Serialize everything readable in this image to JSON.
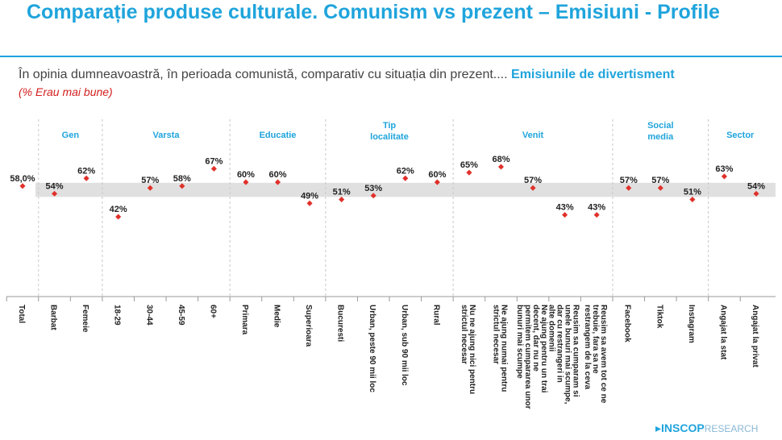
{
  "header": {
    "title": "Comparație produse culturale. Comunism vs prezent – Emisiuni - Profile",
    "question_prefix": "În opinia dumneavoastră, în perioada comunistă, comparativ cu situația din prezent....",
    "question_highlight": "Emisiunile de divertisment",
    "note": "(% Erau mai bune)"
  },
  "brand": {
    "name_bold": "INSCOP",
    "name_light": "RESEARCH"
  },
  "colors": {
    "accent": "#1fa4dc",
    "marker": "#e0312a",
    "band": "#e0e0e0"
  },
  "chart_data": {
    "type": "scatter",
    "title": "Comparație produse culturale. Comunism vs prezent – Emisiuni - Profile",
    "ylabel": "% Erau mai bune",
    "ylim": [
      25,
      75
    ],
    "total_band": [
      54,
      58
    ],
    "categories": [
      "Total",
      "Barbat",
      "Femeie",
      "18-29",
      "30-44",
      "45-59",
      "60+",
      "Primara",
      "Medie",
      "Superioara",
      "Bucuresti",
      "Urban, peste 90 mii loc",
      "Urban, sub 90 mii loc",
      "Rural",
      "Nu ne ajung nici pentru strictul necesar",
      "Ne ajung numai pentru strictul necesar",
      "Ne ajung pentru un trai decent, dar nu ne permitem cumpararea unor bunuri mai scumpe",
      "Reusim sa cumparam si unele bunuri mai scumpe, dar cu restrangeri in alte domenii",
      "Reusim sa avem tot ce ne trebuie, fara sa ne restrangem de la ceva",
      "Facebook",
      "Tiktok",
      "Instagram",
      "Angajat la stat",
      "Angajat la privat"
    ],
    "values": [
      58.0,
      54,
      62,
      42,
      57,
      58,
      67,
      60,
      60,
      49,
      51,
      53,
      62,
      60,
      65,
      68,
      57,
      43,
      43,
      57,
      57,
      51,
      63,
      54
    ],
    "value_labels": [
      "58,0%",
      "54%",
      "62%",
      "42%",
      "57%",
      "58%",
      "67%",
      "60%",
      "60%",
      "49%",
      "51%",
      "53%",
      "62%",
      "60%",
      "65%",
      "68%",
      "57%",
      "43%",
      "43%",
      "57%",
      "57%",
      "51%",
      "63%",
      "54%"
    ],
    "groups": [
      {
        "label": "Gen",
        "from": 1,
        "to": 2
      },
      {
        "label": "Varsta",
        "from": 3,
        "to": 6
      },
      {
        "label": "Educatie",
        "from": 7,
        "to": 9
      },
      {
        "label": "Tip localitate",
        "from": 10,
        "to": 13
      },
      {
        "label": "Venit",
        "from": 14,
        "to": 18
      },
      {
        "label": "Social media",
        "from": 19,
        "to": 21
      },
      {
        "label": "Sector",
        "from": 22,
        "to": 23
      }
    ]
  }
}
